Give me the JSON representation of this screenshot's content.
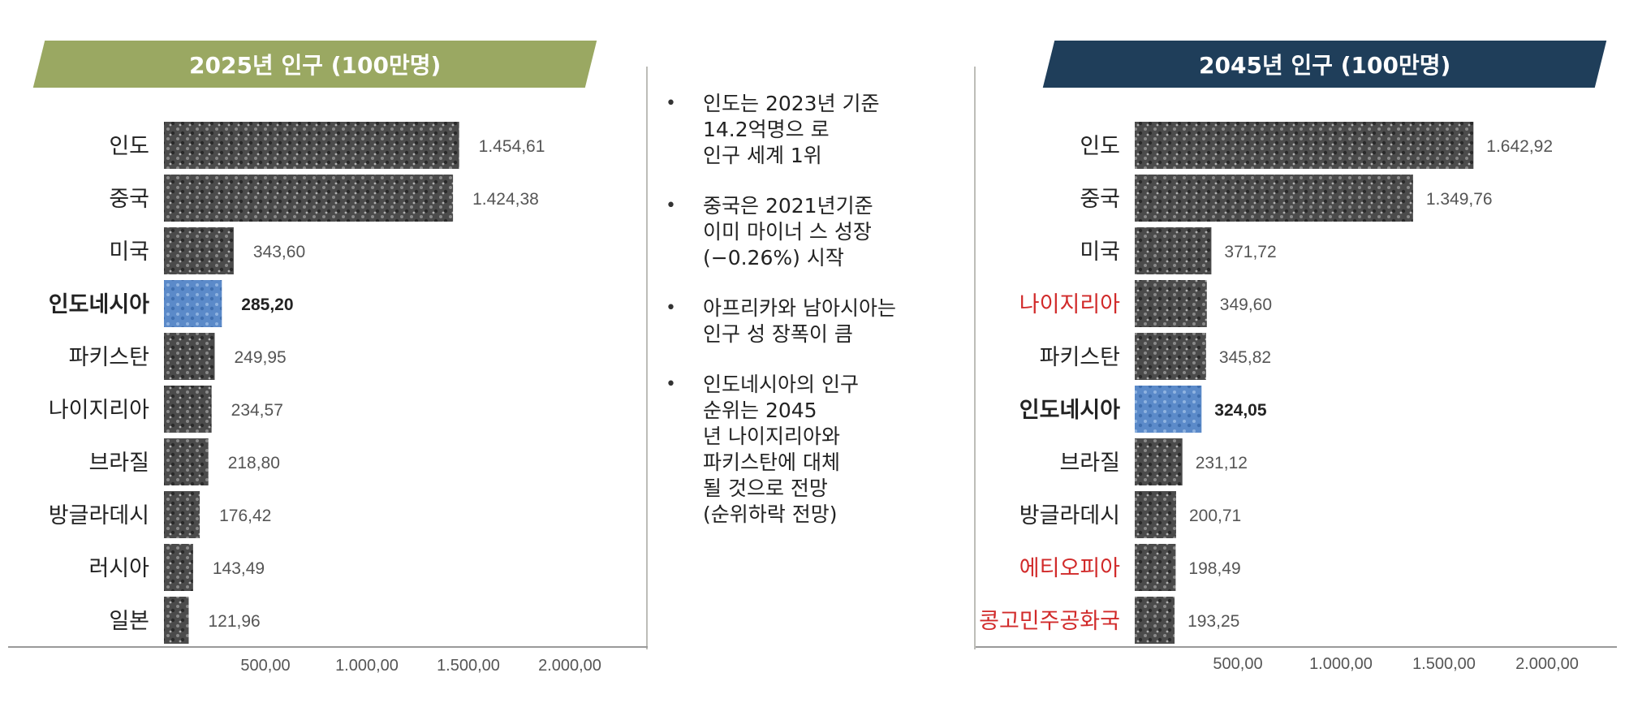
{
  "colors": {
    "left_banner": "#9aa862",
    "right_banner": "#1f3e5a",
    "bar_gray": "#4b4b4b",
    "bar_highlight": "#5b8ac9",
    "label_red": "#d12a2a",
    "text_dark": "#222222",
    "value_gray": "#555555"
  },
  "chart_data": [
    {
      "type": "bar",
      "orientation": "horizontal",
      "title": "2025년 인구 (100만명)",
      "categories": [
        "인도",
        "중국",
        "미국",
        "인도네시아",
        "파키스탄",
        "나이지리아",
        "브라질",
        "방글라데시",
        "러시아",
        "일본"
      ],
      "values": [
        1454.61,
        1424.38,
        343.6,
        285.2,
        249.95,
        234.57,
        218.8,
        176.42,
        143.49,
        121.96
      ],
      "value_labels": [
        "1.454,61",
        "1.424,38",
        "343,60",
        "285,20",
        "249,95",
        "234,57",
        "218,80",
        "176,42",
        "143,49",
        "121,96"
      ],
      "highlight": [
        "인도네시아"
      ],
      "red_labels": [],
      "xlim": [
        0,
        2000
      ],
      "x_ticks": [
        "500,00",
        "1.000,00",
        "1.500,00",
        "2.000,00"
      ],
      "grid": false
    },
    {
      "type": "bar",
      "orientation": "horizontal",
      "title": "2045년 인구 (100만명)",
      "categories": [
        "인도",
        "중국",
        "미국",
        "나이지리아",
        "파키스탄",
        "인도네시아",
        "브라질",
        "방글라데시",
        "에티오피아",
        "콩고민주공화국"
      ],
      "values": [
        1642.92,
        1349.76,
        371.72,
        349.6,
        345.82,
        324.05,
        231.12,
        200.71,
        198.49,
        193.25
      ],
      "value_labels": [
        "1.642,92",
        "1.349,76",
        "371,72",
        "349,60",
        "345,82",
        "324,05",
        "231,12",
        "200,71",
        "198,49",
        "193,25"
      ],
      "highlight": [
        "인도네시아"
      ],
      "red_labels": [
        "나이지리아",
        "에티오피아",
        "콩고민주공화국"
      ],
      "xlim": [
        0,
        2000
      ],
      "x_ticks": [
        "500,00",
        "1.000,00",
        "1.500,00",
        "2.000,00"
      ],
      "grid": false
    }
  ],
  "notes": [
    "인도는 2023년 기준\n14.2억명으 로\n인구 세계 1위",
    "중국은 2021년기준\n이미 마이너 스 성장\n(−0.26%) 시작",
    "아프리카와 남아시아는\n인구 성 장폭이 큼",
    "인도네시아의 인구\n순위는 2045\n년 나이지리아와\n파키스탄에 대체\n될 것으로 전망\n(순위하락 전망)"
  ]
}
